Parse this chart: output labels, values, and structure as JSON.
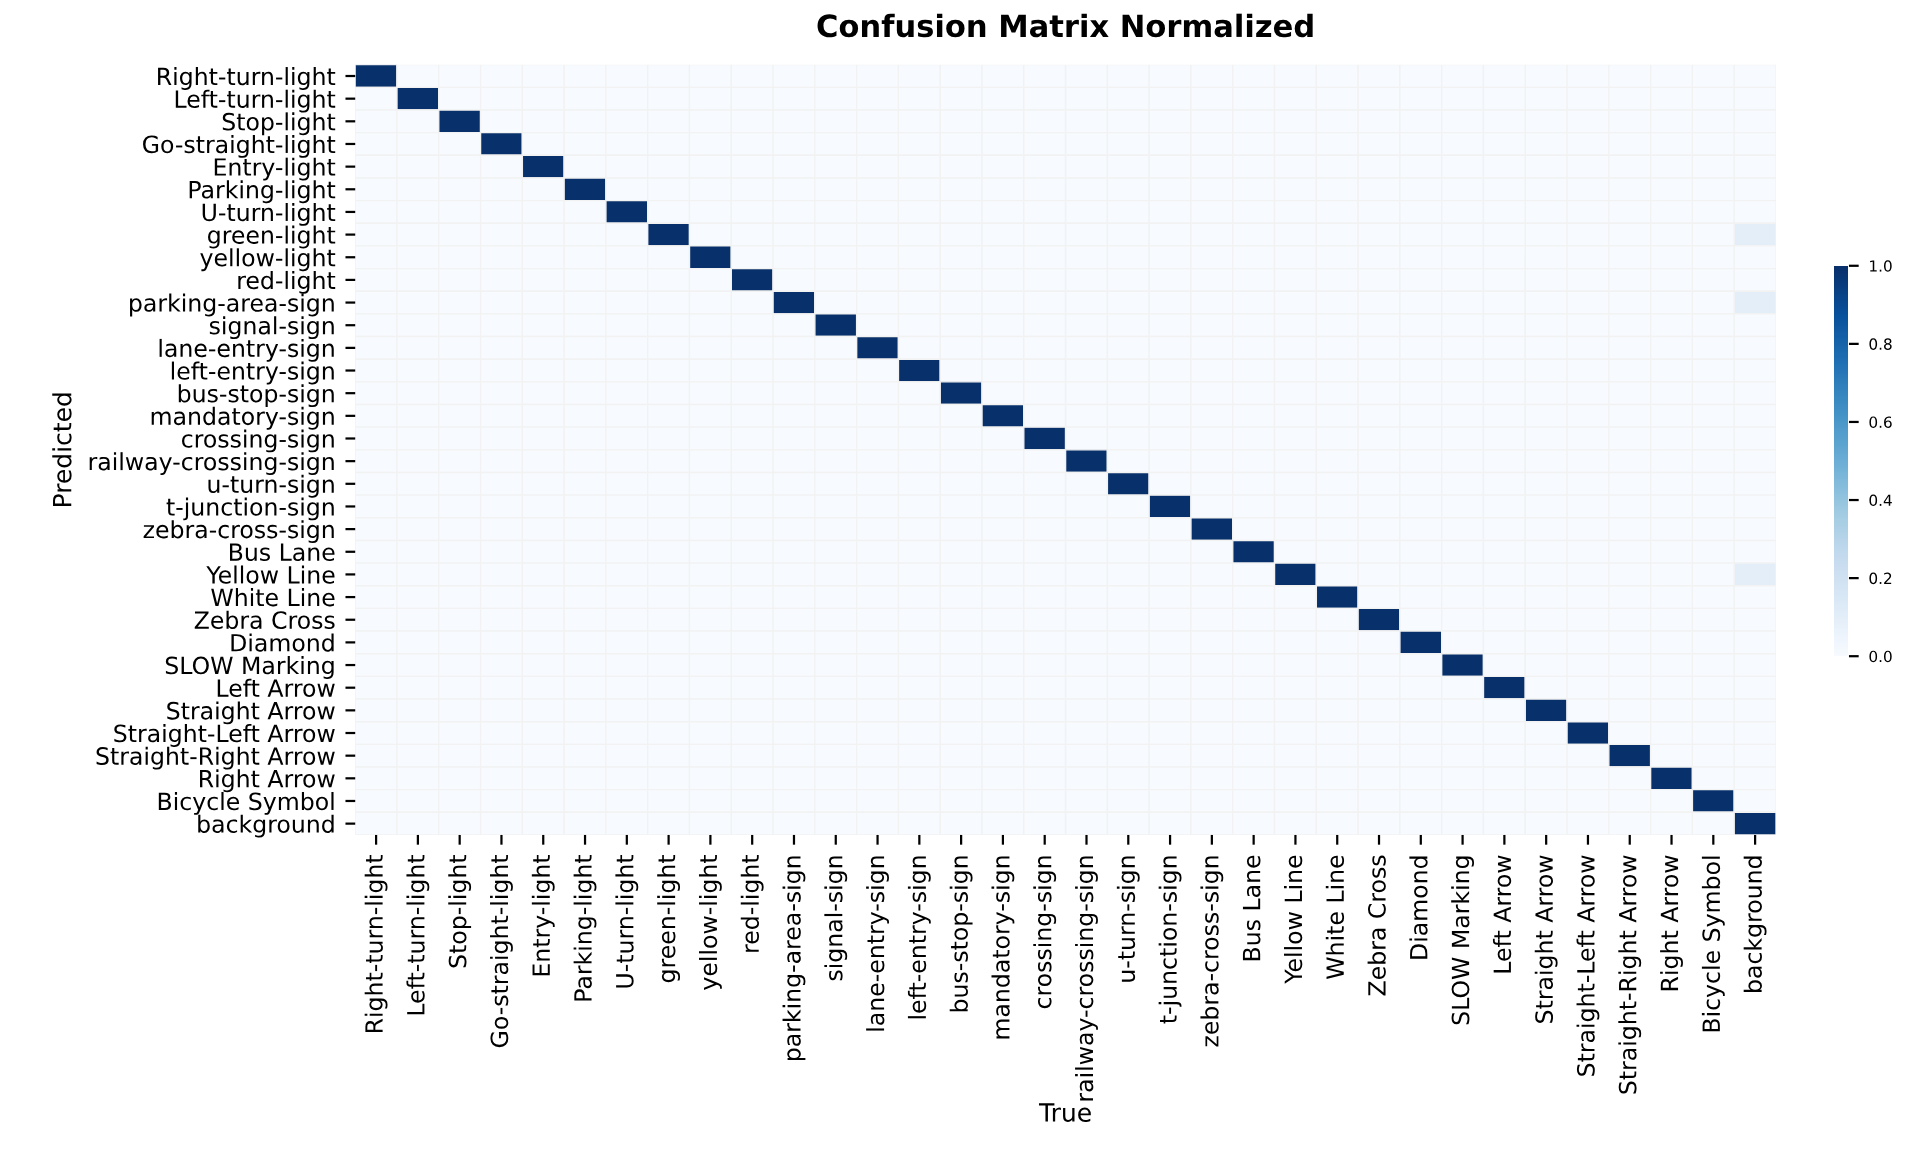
{
  "chart_data": {
    "type": "heatmap",
    "title": "Confusion Matrix Normalized",
    "xlabel": "True",
    "ylabel": "Predicted",
    "categories": [
      "Right-turn-light",
      "Left-turn-light",
      "Stop-light",
      "Go-straight-light",
      "Entry-light",
      "Parking-light",
      "U-turn-light",
      "green-light",
      "yellow-light",
      "red-light",
      "parking-area-sign",
      "signal-sign",
      "lane-entry-sign",
      "left-entry-sign",
      "bus-stop-sign",
      "mandatory-sign",
      "crossing-sign",
      "railway-crossing-sign",
      "u-turn-sign",
      "t-junction-sign",
      "zebra-cross-sign",
      "Bus Lane",
      "Yellow Line",
      "White Line",
      "Zebra Cross",
      "Diamond",
      "SLOW Marking",
      "Left Arrow",
      "Straight Arrow",
      "Straight-Left Arrow",
      "Straight-Right Arrow",
      "Right Arrow",
      "Bicycle Symbol",
      "background"
    ],
    "y_categories": [
      "Right-turn-light",
      "Left-turn-light",
      "Stop-light",
      "Go-straight-light",
      "Entry-light",
      "Parking-light",
      "U-turn-light",
      "green-light",
      "yellow-light",
      "red-light",
      "parking-area-sign",
      "signal-sign",
      "lane-entry-sign",
      "left-entry-sign",
      "bus-stop-sign",
      "mandatory-sign",
      "crossing-sign",
      "railway-crossing-sign",
      "u-turn-sign",
      "t-junction-sign",
      "zebra-cross-sign",
      "Bus Lane",
      "Yellow Line",
      "White Line",
      "Zebra Cross",
      "Diamond",
      "SLOW Marking",
      "Left Arrow",
      "Straight Arrow",
      "Straight-Left Arrow",
      "Straight-Right Arrow",
      "Right Arrow",
      "Bicycle Symbol",
      "background"
    ],
    "cells": [
      [
        1,
        0,
        0,
        0,
        0,
        0,
        0,
        0,
        0,
        0,
        0,
        0,
        0,
        0,
        0,
        0,
        0,
        0,
        0,
        0,
        0,
        0,
        0,
        0,
        0,
        0,
        0,
        0,
        0,
        0,
        0,
        0,
        0,
        0
      ],
      [
        0,
        1,
        0,
        0,
        0,
        0,
        0,
        0,
        0,
        0,
        0,
        0,
        0,
        0,
        0,
        0,
        0,
        0,
        0,
        0,
        0,
        0,
        0,
        0,
        0,
        0,
        0,
        0,
        0,
        0,
        0,
        0,
        0,
        0
      ],
      [
        0,
        0,
        1,
        0,
        0,
        0,
        0,
        0,
        0,
        0,
        0,
        0,
        0,
        0,
        0,
        0,
        0,
        0,
        0,
        0,
        0,
        0,
        0,
        0,
        0,
        0,
        0,
        0,
        0,
        0,
        0,
        0,
        0,
        0
      ],
      [
        0,
        0,
        0,
        1,
        0,
        0,
        0,
        0,
        0,
        0,
        0,
        0,
        0,
        0,
        0,
        0,
        0,
        0,
        0,
        0,
        0,
        0,
        0,
        0,
        0,
        0,
        0,
        0,
        0,
        0,
        0,
        0,
        0,
        0
      ],
      [
        0,
        0,
        0,
        0,
        1,
        0,
        0,
        0,
        0,
        0,
        0,
        0,
        0,
        0,
        0,
        0,
        0,
        0,
        0,
        0,
        0,
        0,
        0,
        0,
        0,
        0,
        0,
        0,
        0,
        0,
        0,
        0,
        0,
        0
      ],
      [
        0,
        0,
        0,
        0,
        0,
        1,
        0,
        0,
        0,
        0,
        0,
        0,
        0,
        0,
        0,
        0,
        0,
        0,
        0,
        0,
        0,
        0,
        0,
        0,
        0,
        0,
        0,
        0,
        0,
        0,
        0,
        0,
        0,
        0
      ],
      [
        0,
        0,
        0,
        0,
        0,
        0,
        1,
        0,
        0,
        0,
        0,
        0,
        0,
        0,
        0,
        0,
        0,
        0,
        0,
        0,
        0,
        0,
        0,
        0,
        0,
        0,
        0,
        0,
        0,
        0,
        0,
        0,
        0,
        0
      ],
      [
        0,
        0,
        0,
        0,
        0,
        0,
        0,
        1,
        0,
        0,
        0,
        0,
        0,
        0,
        0,
        0,
        0,
        0,
        0,
        0,
        0,
        0,
        0,
        0,
        0,
        0,
        0,
        0,
        0,
        0,
        0,
        0,
        0,
        0.1
      ],
      [
        0,
        0,
        0,
        0,
        0,
        0,
        0,
        0,
        1,
        0,
        0,
        0,
        0,
        0,
        0,
        0,
        0,
        0,
        0,
        0,
        0,
        0,
        0,
        0,
        0,
        0,
        0,
        0,
        0,
        0,
        0,
        0,
        0,
        0
      ],
      [
        0,
        0,
        0,
        0,
        0,
        0,
        0,
        0,
        0,
        1,
        0,
        0,
        0,
        0,
        0,
        0,
        0,
        0,
        0,
        0,
        0,
        0,
        0,
        0,
        0,
        0,
        0,
        0,
        0,
        0,
        0,
        0,
        0,
        0
      ],
      [
        0,
        0,
        0,
        0,
        0,
        0,
        0,
        0,
        0,
        0,
        1,
        0,
        0,
        0,
        0,
        0,
        0,
        0,
        0,
        0,
        0,
        0,
        0,
        0,
        0,
        0,
        0,
        0,
        0,
        0,
        0,
        0,
        0,
        0.1
      ],
      [
        0,
        0,
        0,
        0,
        0,
        0,
        0,
        0,
        0,
        0,
        0,
        1,
        0,
        0,
        0,
        0,
        0,
        0,
        0,
        0,
        0,
        0,
        0,
        0,
        0,
        0,
        0,
        0,
        0,
        0,
        0,
        0,
        0,
        0
      ],
      [
        0,
        0,
        0,
        0,
        0,
        0,
        0,
        0,
        0,
        0,
        0,
        0,
        1,
        0,
        0,
        0,
        0,
        0,
        0,
        0,
        0,
        0,
        0,
        0,
        0,
        0,
        0,
        0,
        0,
        0,
        0,
        0,
        0,
        0
      ],
      [
        0,
        0,
        0,
        0,
        0,
        0,
        0,
        0,
        0,
        0,
        0,
        0,
        0,
        1,
        0,
        0,
        0,
        0,
        0,
        0,
        0,
        0,
        0,
        0,
        0,
        0,
        0,
        0,
        0,
        0,
        0,
        0,
        0,
        0
      ],
      [
        0,
        0,
        0,
        0,
        0,
        0,
        0,
        0,
        0,
        0,
        0,
        0,
        0,
        0,
        1,
        0,
        0,
        0,
        0,
        0,
        0,
        0,
        0,
        0,
        0,
        0,
        0,
        0,
        0,
        0,
        0,
        0,
        0,
        0
      ],
      [
        0,
        0,
        0,
        0,
        0,
        0,
        0,
        0,
        0,
        0,
        0,
        0,
        0,
        0,
        0,
        1,
        0,
        0,
        0,
        0,
        0,
        0,
        0,
        0,
        0,
        0,
        0,
        0,
        0,
        0,
        0,
        0,
        0,
        0
      ],
      [
        0,
        0,
        0,
        0,
        0,
        0,
        0,
        0,
        0,
        0,
        0,
        0,
        0,
        0,
        0,
        0,
        1,
        0,
        0,
        0,
        0,
        0,
        0,
        0,
        0,
        0,
        0,
        0,
        0,
        0,
        0,
        0,
        0,
        0
      ],
      [
        0,
        0,
        0,
        0,
        0,
        0,
        0,
        0,
        0,
        0,
        0,
        0,
        0,
        0,
        0,
        0,
        0,
        1,
        0,
        0,
        0,
        0,
        0,
        0,
        0,
        0,
        0,
        0,
        0,
        0,
        0,
        0,
        0,
        0
      ],
      [
        0,
        0,
        0,
        0,
        0,
        0,
        0,
        0,
        0,
        0,
        0,
        0,
        0,
        0,
        0,
        0,
        0,
        0,
        1,
        0,
        0,
        0,
        0,
        0,
        0,
        0,
        0,
        0,
        0,
        0,
        0,
        0,
        0,
        0
      ],
      [
        0,
        0,
        0,
        0,
        0,
        0,
        0,
        0,
        0,
        0,
        0,
        0,
        0,
        0,
        0,
        0,
        0,
        0,
        0,
        1,
        0,
        0,
        0,
        0,
        0,
        0,
        0,
        0,
        0,
        0,
        0,
        0,
        0,
        0
      ],
      [
        0,
        0,
        0,
        0,
        0,
        0,
        0,
        0,
        0,
        0,
        0,
        0,
        0,
        0,
        0,
        0,
        0,
        0,
        0,
        0,
        1,
        0,
        0,
        0,
        0,
        0,
        0,
        0,
        0,
        0,
        0,
        0,
        0,
        0
      ],
      [
        0,
        0,
        0,
        0,
        0,
        0,
        0,
        0,
        0,
        0,
        0,
        0,
        0,
        0,
        0,
        0,
        0,
        0,
        0,
        0,
        0,
        1,
        0,
        0,
        0,
        0,
        0,
        0,
        0,
        0,
        0,
        0,
        0,
        0
      ],
      [
        0,
        0,
        0,
        0,
        0,
        0,
        0,
        0,
        0,
        0,
        0,
        0,
        0,
        0,
        0,
        0,
        0,
        0,
        0,
        0,
        0,
        0,
        1,
        0,
        0,
        0,
        0,
        0,
        0,
        0,
        0,
        0,
        0,
        0.1
      ],
      [
        0,
        0,
        0,
        0,
        0,
        0,
        0,
        0,
        0,
        0,
        0,
        0,
        0,
        0,
        0,
        0,
        0,
        0,
        0,
        0,
        0,
        0,
        0,
        1,
        0,
        0,
        0,
        0,
        0,
        0,
        0,
        0,
        0,
        0
      ],
      [
        0,
        0,
        0,
        0,
        0,
        0,
        0,
        0,
        0,
        0,
        0,
        0,
        0,
        0,
        0,
        0,
        0,
        0,
        0,
        0,
        0,
        0,
        0,
        0,
        1,
        0,
        0,
        0,
        0,
        0,
        0,
        0,
        0,
        0
      ],
      [
        0,
        0,
        0,
        0,
        0,
        0,
        0,
        0,
        0,
        0,
        0,
        0,
        0,
        0,
        0,
        0,
        0,
        0,
        0,
        0,
        0,
        0,
        0,
        0,
        0,
        1,
        0,
        0,
        0,
        0,
        0,
        0,
        0,
        0
      ],
      [
        0,
        0,
        0,
        0,
        0,
        0,
        0,
        0,
        0,
        0,
        0,
        0,
        0,
        0,
        0,
        0,
        0,
        0,
        0,
        0,
        0,
        0,
        0,
        0,
        0,
        0,
        1,
        0,
        0,
        0,
        0,
        0,
        0,
        0
      ],
      [
        0,
        0,
        0,
        0,
        0,
        0,
        0,
        0,
        0,
        0,
        0,
        0,
        0,
        0,
        0,
        0,
        0,
        0,
        0,
        0,
        0,
        0,
        0,
        0,
        0,
        0,
        0,
        1,
        0,
        0,
        0,
        0,
        0,
        0
      ],
      [
        0,
        0,
        0,
        0,
        0,
        0,
        0,
        0,
        0,
        0,
        0,
        0,
        0,
        0,
        0,
        0,
        0,
        0,
        0,
        0,
        0,
        0,
        0,
        0,
        0,
        0,
        0,
        0,
        1,
        0,
        0,
        0,
        0,
        0
      ],
      [
        0,
        0,
        0,
        0,
        0,
        0,
        0,
        0,
        0,
        0,
        0,
        0,
        0,
        0,
        0,
        0,
        0,
        0,
        0,
        0,
        0,
        0,
        0,
        0,
        0,
        0,
        0,
        0,
        0,
        1,
        0,
        0,
        0,
        0
      ],
      [
        0,
        0,
        0,
        0,
        0,
        0,
        0,
        0,
        0,
        0,
        0,
        0,
        0,
        0,
        0,
        0,
        0,
        0,
        0,
        0,
        0,
        0,
        0,
        0,
        0,
        0,
        0,
        0,
        0,
        0,
        1,
        0,
        0,
        0
      ],
      [
        0,
        0,
        0,
        0,
        0,
        0,
        0,
        0,
        0,
        0,
        0,
        0,
        0,
        0,
        0,
        0,
        0,
        0,
        0,
        0,
        0,
        0,
        0,
        0,
        0,
        0,
        0,
        0,
        0,
        0,
        0,
        1,
        0,
        0
      ],
      [
        0,
        0,
        0,
        0,
        0,
        0,
        0,
        0,
        0,
        0,
        0,
        0,
        0,
        0,
        0,
        0,
        0,
        0,
        0,
        0,
        0,
        0,
        0,
        0,
        0,
        0,
        0,
        0,
        0,
        0,
        0,
        0,
        1,
        0
      ],
      [
        0,
        0,
        0,
        0,
        0,
        0,
        0,
        0,
        0,
        0,
        0,
        0,
        0,
        0,
        0,
        0,
        0,
        0,
        0,
        0,
        0,
        0,
        0,
        0,
        0,
        0,
        0,
        0,
        0,
        0,
        0,
        0,
        0,
        1
      ]
    ],
    "clim": [
      0,
      1
    ],
    "cticks": [
      {
        "value": 0,
        "label": "0.0"
      },
      {
        "value": 0.2,
        "label": "0.2"
      },
      {
        "value": 0.4,
        "label": "0.4"
      },
      {
        "value": 0.6,
        "label": "0.6"
      },
      {
        "value": 0.8,
        "label": "0.8"
      },
      {
        "value": 1,
        "label": "1.0"
      }
    ]
  }
}
